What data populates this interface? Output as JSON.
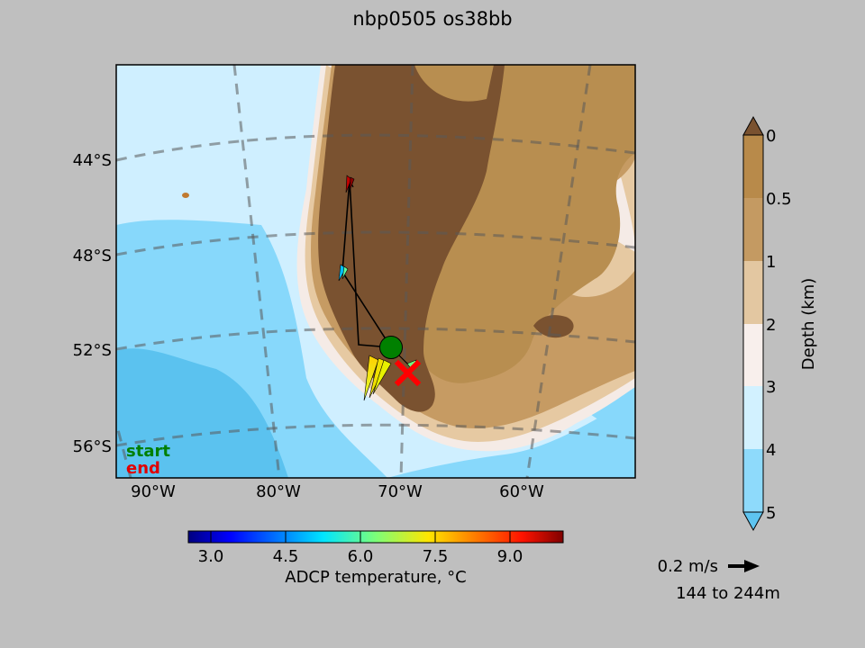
{
  "title": "nbp0505 os38bb",
  "map": {
    "lat_labels": [
      "44°S",
      "48°S",
      "52°S",
      "56°S"
    ],
    "lon_labels": [
      "90°W",
      "80°W",
      "70°W",
      "60°W"
    ],
    "legend": {
      "start": "start",
      "end": "end",
      "start_color": "#007f00",
      "end_color": "#e00000"
    },
    "colors": {
      "land_high": "#7a5230",
      "land_low": "#b88e50",
      "shelf_0_1": "#c69b63",
      "shelf_1_2": "#e6c9a2",
      "slope_2_3": "#f5ebe6",
      "deep_3_4": "#cfefff",
      "deep_4_5": "#87d8fb",
      "abyss": "#5bc2ef"
    }
  },
  "depth_colorbar": {
    "label": "Depth (km)",
    "ticks": [
      "0",
      "0.5",
      "1",
      "2",
      "3",
      "4",
      "5"
    ],
    "colors": [
      "#b88a4a",
      "#c49a62",
      "#e3c7a1",
      "#f8efec",
      "#d2f1ff",
      "#8edafb",
      "#5ec4f0"
    ],
    "extend_top_color": "#7a5230",
    "extend_bottom_color": "#5ec4f0"
  },
  "temp_colorbar": {
    "label": "ADCP temperature, °C",
    "ticks": [
      "3.0",
      "4.5",
      "6.0",
      "7.5",
      "9.0"
    ],
    "range": [
      2.5,
      10.0
    ]
  },
  "vector_key": {
    "speed": "0.2 m/s",
    "depth_range": "144 to 244m"
  },
  "track": {
    "start_marker_color": "#008000",
    "end_marker_color": "#ff0000"
  }
}
